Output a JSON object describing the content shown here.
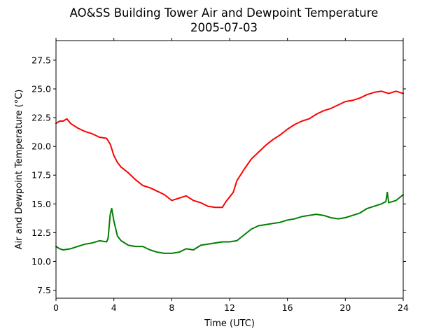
{
  "chart_data": {
    "type": "line",
    "title": "AO&SS Building Tower Air and Dewpoint Temperature",
    "subtitle": "2005-07-03",
    "xlabel": "Time (UTC)",
    "ylabel": "Air and Dewpoint Temperature (°C)",
    "xlim": [
      0,
      24
    ],
    "ylim": [
      6.8,
      29.2
    ],
    "xticks": [
      0,
      4,
      8,
      12,
      16,
      20,
      24
    ],
    "xtick_labels": [
      "0",
      "4",
      "8",
      "12",
      "16",
      "20",
      "24"
    ],
    "yticks": [
      7.5,
      10.0,
      12.5,
      15.0,
      17.5,
      20.0,
      22.5,
      25.0,
      27.5
    ],
    "ytick_labels": [
      "7.5",
      "10.0",
      "12.5",
      "15.0",
      "17.5",
      "20.0",
      "22.5",
      "25.0",
      "27.5"
    ],
    "grid": false,
    "legend": "none",
    "series": [
      {
        "color": "#ff0000",
        "x": [
          0,
          0.25,
          0.5,
          0.75,
          1.0,
          1.5,
          2.0,
          2.5,
          3.0,
          3.5,
          3.75,
          4.0,
          4.25,
          4.5,
          5.0,
          5.5,
          6.0,
          6.5,
          7.0,
          7.5,
          8.0,
          8.5,
          9.0,
          9.5,
          10.0,
          10.5,
          11.0,
          11.5,
          11.75,
          12.0,
          12.25,
          12.5,
          13.0,
          13.5,
          14.0,
          14.5,
          15.0,
          15.5,
          16.0,
          16.5,
          17.0,
          17.5,
          18.0,
          18.5,
          19.0,
          19.5,
          20.0,
          20.5,
          21.0,
          21.5,
          22.0,
          22.5,
          23.0,
          23.5,
          24.0
        ],
        "y": [
          22.0,
          22.2,
          22.2,
          22.4,
          22.0,
          21.6,
          21.3,
          21.1,
          20.8,
          20.7,
          20.2,
          19.2,
          18.6,
          18.2,
          17.7,
          17.1,
          16.6,
          16.4,
          16.1,
          15.8,
          15.3,
          15.5,
          15.7,
          15.3,
          15.1,
          14.8,
          14.7,
          14.7,
          15.2,
          15.6,
          16.0,
          17.0,
          18.0,
          18.9,
          19.5,
          20.1,
          20.6,
          21.0,
          21.5,
          21.9,
          22.2,
          22.4,
          22.8,
          23.1,
          23.3,
          23.6,
          23.9,
          24.0,
          24.2,
          24.5,
          24.7,
          24.8,
          24.6,
          24.8,
          24.6
        ]
      },
      {
        "color": "#008000",
        "x": [
          0,
          0.25,
          0.5,
          1.0,
          1.5,
          2.0,
          2.5,
          3.0,
          3.5,
          3.6,
          3.75,
          3.85,
          4.0,
          4.25,
          4.5,
          5.0,
          5.5,
          6.0,
          6.5,
          7.0,
          7.5,
          8.0,
          8.5,
          9.0,
          9.5,
          10.0,
          10.5,
          11.0,
          11.5,
          12.0,
          12.5,
          13.0,
          13.5,
          14.0,
          14.5,
          15.0,
          15.5,
          16.0,
          16.5,
          17.0,
          17.5,
          18.0,
          18.5,
          19.0,
          19.5,
          20.0,
          20.5,
          21.0,
          21.5,
          22.0,
          22.5,
          22.8,
          22.9,
          23.0,
          23.5,
          24.0
        ],
        "y": [
          11.3,
          11.1,
          11.0,
          11.1,
          11.3,
          11.5,
          11.6,
          11.8,
          11.7,
          12.0,
          14.1,
          14.6,
          13.5,
          12.2,
          11.8,
          11.4,
          11.3,
          11.3,
          11.0,
          10.8,
          10.7,
          10.7,
          10.8,
          11.1,
          11.0,
          11.4,
          11.5,
          11.6,
          11.7,
          11.7,
          11.8,
          12.3,
          12.8,
          13.1,
          13.2,
          13.3,
          13.4,
          13.6,
          13.7,
          13.9,
          14.0,
          14.1,
          14.0,
          13.8,
          13.7,
          13.8,
          14.0,
          14.2,
          14.6,
          14.8,
          15.0,
          15.2,
          16.0,
          15.1,
          15.3,
          15.8
        ]
      }
    ]
  }
}
